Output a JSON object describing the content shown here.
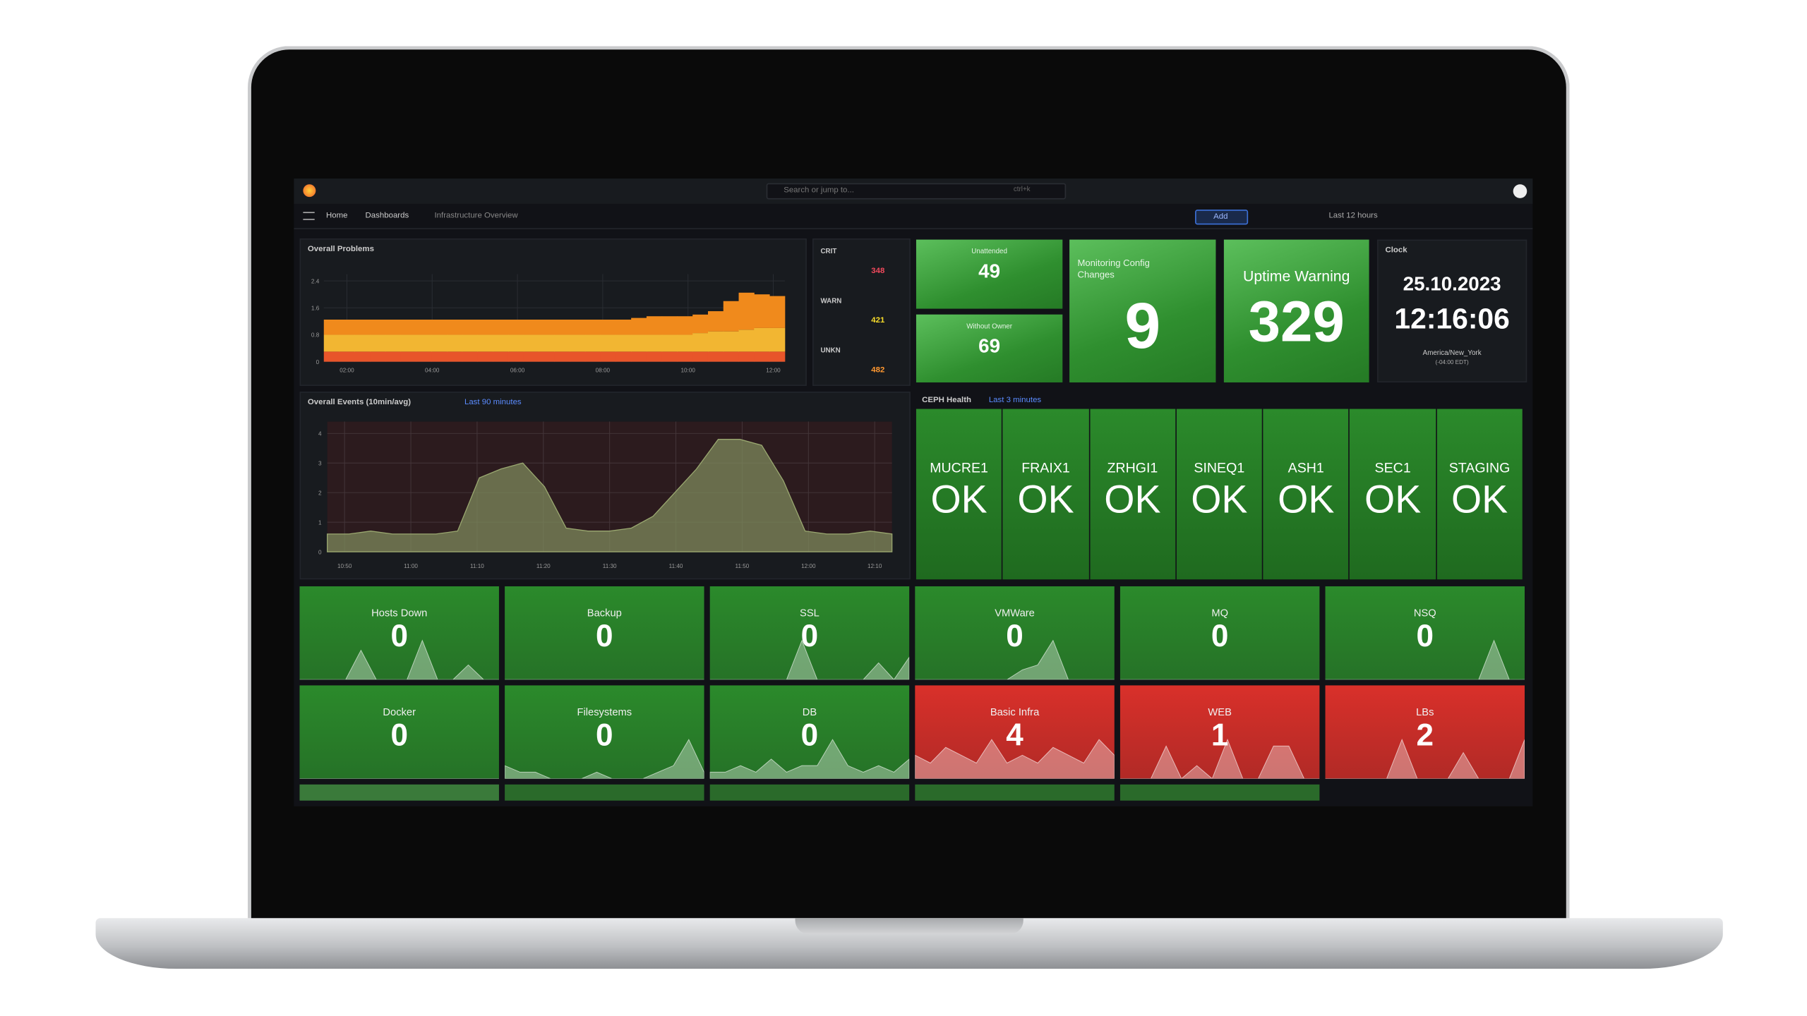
{
  "topbar": {
    "search": "Search or jump to...",
    "shortcut": "ctrl+k"
  },
  "breadcrumb": [
    "Home",
    "Dashboards",
    "Infrastructure Overview"
  ],
  "toolbar": {
    "add": "Add",
    "time_range": "Last 12 hours"
  },
  "problems": {
    "title": "Overall Problems",
    "ylim": [
      0,
      2.6
    ],
    "yticks": [
      0,
      0.8,
      1.6,
      2.4
    ],
    "xticks": [
      "02:00",
      "04:00",
      "06:00",
      "08:00",
      "10:00",
      "12:00"
    ],
    "series": [
      {
        "color": "#e8552a",
        "values": [
          0.3,
          0.3,
          0.3,
          0.3,
          0.3,
          0.3,
          0.3,
          0.3,
          0.3,
          0.3,
          0.3,
          0.3,
          0.3,
          0.3,
          0.3,
          0.3,
          0.3,
          0.3,
          0.3,
          0.3,
          0.3,
          0.3,
          0.3,
          0.3,
          0.3,
          0.3,
          0.3,
          0.3,
          0.3,
          0.3
        ]
      },
      {
        "color": "#f2b632",
        "values": [
          0.5,
          0.5,
          0.5,
          0.5,
          0.5,
          0.5,
          0.5,
          0.5,
          0.5,
          0.5,
          0.5,
          0.5,
          0.5,
          0.5,
          0.5,
          0.5,
          0.5,
          0.5,
          0.5,
          0.5,
          0.5,
          0.5,
          0.5,
          0.5,
          0.55,
          0.6,
          0.6,
          0.65,
          0.7,
          0.7
        ]
      },
      {
        "color": "#f08a1c",
        "values": [
          0.45,
          0.45,
          0.45,
          0.45,
          0.45,
          0.45,
          0.45,
          0.45,
          0.45,
          0.45,
          0.45,
          0.45,
          0.45,
          0.45,
          0.45,
          0.45,
          0.45,
          0.45,
          0.45,
          0.45,
          0.5,
          0.55,
          0.55,
          0.55,
          0.55,
          0.6,
          0.9,
          1.1,
          1.0,
          0.95
        ]
      }
    ]
  },
  "severity": [
    {
      "label": "CRIT",
      "value": 348,
      "color": "#f2495c"
    },
    {
      "label": "WARN",
      "value": 421,
      "color": "#fade2a"
    },
    {
      "label": "UNKN",
      "value": 482,
      "color": "#ff9830"
    }
  ],
  "stats": [
    {
      "title": "Unattended",
      "value": 49
    },
    {
      "title": "Without Owner",
      "value": 69
    },
    {
      "title": "Monitoring Config Changes",
      "value": 9
    },
    {
      "title": "Uptime Warning",
      "value": 329
    }
  ],
  "clock": {
    "title": "Clock",
    "date": "25.10.2023",
    "time": "12:16:06",
    "zone": "America/New_York",
    "offset": "(-04:00 EDT)"
  },
  "events": {
    "title": "Overall Events (10min/avg)",
    "range": "Last 90 minutes",
    "ylim": [
      0,
      4.4
    ],
    "yticks": [
      0,
      1,
      2,
      3,
      4
    ],
    "xticks": [
      "10:50",
      "11:00",
      "11:10",
      "11:20",
      "11:30",
      "11:40",
      "11:50",
      "12:00",
      "12:10"
    ],
    "color": "#7e8a5c",
    "values": [
      0.6,
      0.6,
      0.7,
      0.6,
      0.6,
      0.6,
      0.7,
      2.5,
      2.8,
      3.0,
      2.2,
      0.8,
      0.7,
      0.7,
      0.8,
      1.2,
      2.0,
      2.8,
      3.8,
      3.8,
      3.6,
      2.4,
      0.7,
      0.6,
      0.6,
      0.7,
      0.6
    ]
  },
  "ceph": {
    "title": "CEPH Health",
    "range": "Last 3 minutes",
    "color": "#2b8a2b",
    "sites": [
      {
        "name": "MUCRE1",
        "status": "OK"
      },
      {
        "name": "FRAIX1",
        "status": "OK"
      },
      {
        "name": "ZRHGI1",
        "status": "OK"
      },
      {
        "name": "SINEQ1",
        "status": "OK"
      },
      {
        "name": "ASH1",
        "status": "OK"
      },
      {
        "name": "SEC1",
        "status": "OK"
      },
      {
        "name": "STAGING",
        "status": "OK"
      }
    ]
  },
  "tiles": [
    {
      "title": "Hosts Down",
      "value": 0,
      "color": "#2b8a2b",
      "spark": [
        0,
        0,
        0,
        0,
        6,
        0,
        0,
        0,
        8,
        0,
        0,
        3,
        0,
        0
      ]
    },
    {
      "title": "Backup",
      "value": 0,
      "color": "#2b8a2b",
      "spark": [
        0,
        0,
        0,
        0,
        0,
        0,
        0,
        0,
        0,
        0,
        0,
        0,
        0,
        0
      ]
    },
    {
      "title": "SSL",
      "value": 0,
      "color": "#2b8a2b",
      "spark": [
        0,
        0,
        0,
        0,
        0,
        0,
        7,
        0,
        0,
        0,
        0,
        3,
        0,
        4
      ]
    },
    {
      "title": "VMWare",
      "value": 0,
      "color": "#2b8a2b",
      "spark": [
        0,
        0,
        0,
        0,
        0,
        0,
        0,
        2,
        3,
        8,
        0,
        0,
        0,
        0
      ]
    },
    {
      "title": "MQ",
      "value": 0,
      "color": "#2b8a2b",
      "spark": [
        0,
        0,
        0,
        0,
        0,
        0,
        0,
        0,
        0,
        0,
        0,
        0,
        0,
        0
      ]
    },
    {
      "title": "NSQ",
      "value": 0,
      "color": "#2b8a2b",
      "spark": [
        0,
        0,
        0,
        0,
        0,
        0,
        0,
        0,
        0,
        0,
        0,
        6,
        0,
        0
      ]
    },
    {
      "title": "Docker",
      "value": 0,
      "color": "#2b8a2b",
      "spark": [
        0,
        0,
        0,
        0,
        0,
        0,
        0,
        0,
        0,
        0,
        0,
        0,
        0,
        0
      ]
    },
    {
      "title": "Filesystems",
      "value": 0,
      "color": "#2b8a2b",
      "spark": [
        2,
        1,
        1,
        0,
        0,
        0,
        1,
        0,
        0,
        0,
        1,
        2,
        6,
        1
      ]
    },
    {
      "title": "DB",
      "value": 0,
      "color": "#2b8a2b",
      "spark": [
        1,
        1,
        2,
        1,
        3,
        1,
        2,
        2,
        6,
        2,
        1,
        2,
        1,
        3
      ]
    },
    {
      "title": "Basic Infra",
      "value": 4,
      "color": "#d9302a",
      "spark": [
        3,
        2,
        4,
        3,
        2,
        5,
        2,
        3,
        2,
        4,
        3,
        2,
        5,
        3
      ]
    },
    {
      "title": "WEB",
      "value": 1,
      "color": "#d9302a",
      "spark": [
        0,
        0,
        0,
        5,
        0,
        2,
        0,
        6,
        0,
        0,
        5,
        5,
        0,
        0
      ]
    },
    {
      "title": "LBs",
      "value": 2,
      "color": "#d9302a",
      "spark": [
        0,
        0,
        0,
        0,
        0,
        6,
        0,
        0,
        0,
        4,
        0,
        0,
        0,
        6
      ]
    }
  ]
}
